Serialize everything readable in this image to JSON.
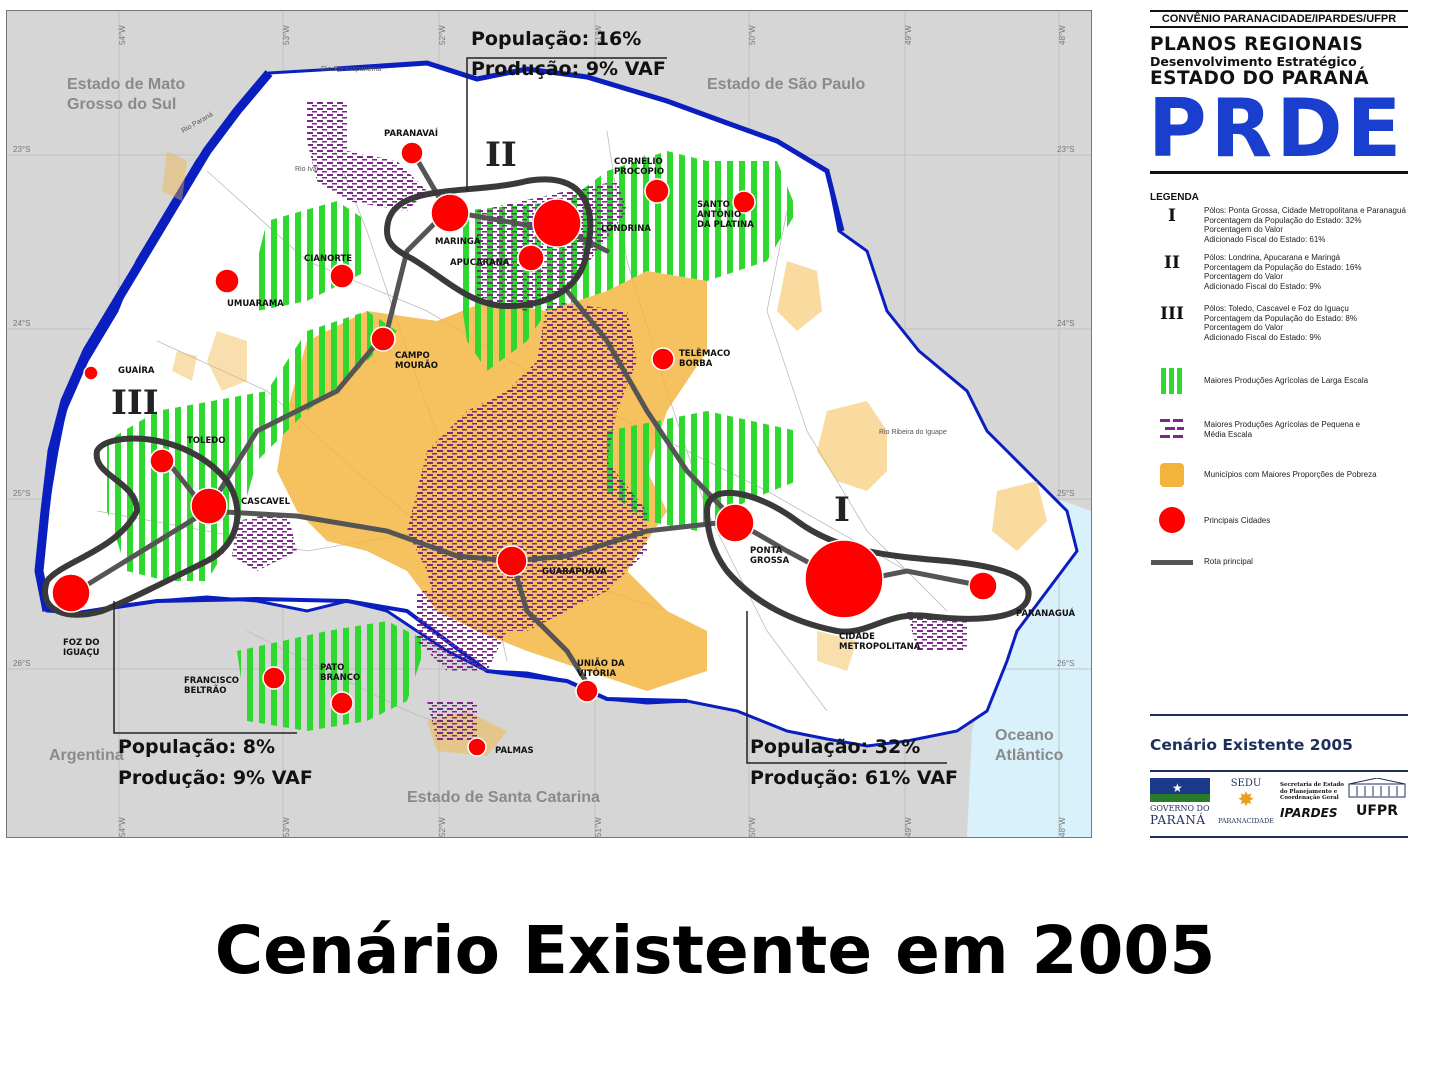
{
  "slide_title": "Cenário Existente em 2005",
  "map": {
    "neighbors": {
      "ms_line1": "Estado de Mato",
      "ms_line2": "Grosso do Sul",
      "sp": "Estado de São Paulo",
      "sc": "Estado de Santa Catarina",
      "argentina": "Argentina",
      "ocean_line1": "Oceano",
      "ocean_line2": "Atlântico"
    },
    "longitudes": [
      "54°W",
      "53°W",
      "52°W",
      "51°W",
      "50°W",
      "49°W",
      "48°W"
    ],
    "latitudes": [
      "23°S",
      "24°S",
      "25°S",
      "26°S"
    ],
    "rivers": {
      "paranapanema": "Rio Paranapanema",
      "parana": "Rio Paraná",
      "ivai": "Rio Ivaí",
      "ribeira": "Rio Ribeira do Iguape"
    },
    "cities": [
      {
        "name": "PARANAVAÍ"
      },
      {
        "name": "MARINGÁ"
      },
      {
        "name": "LONDRINA"
      },
      {
        "name": "APUCARANA"
      },
      {
        "name": "CORNÉLIO"
      },
      {
        "name": "PROCÓPIO"
      },
      {
        "name": "SANTO"
      },
      {
        "name": "ANTÔNIO"
      },
      {
        "name": "DA PLATINA"
      },
      {
        "name": "CIANORTE"
      },
      {
        "name": "UMUARAMA"
      },
      {
        "name": "CAMPO"
      },
      {
        "name": "MOURÃO"
      },
      {
        "name": "TELÊMACO"
      },
      {
        "name": "BORBA"
      },
      {
        "name": "GUAÍRA"
      },
      {
        "name": "TOLEDO"
      },
      {
        "name": "CASCAVEL"
      },
      {
        "name": "FOZ DO"
      },
      {
        "name": "IGUAÇU"
      },
      {
        "name": "PONTA"
      },
      {
        "name": "GROSSA"
      },
      {
        "name": "GUARAPUAVA"
      },
      {
        "name": "CIDADE"
      },
      {
        "name": "METROPOLITANA"
      },
      {
        "name": "PARANAGUÁ"
      },
      {
        "name": "FRANCISCO"
      },
      {
        "name": "BELTRÃO"
      },
      {
        "name": "PATO"
      },
      {
        "name": "BRANCO"
      },
      {
        "name": "UNIÃO DA"
      },
      {
        "name": "VITÓRIA"
      },
      {
        "name": "PALMAS"
      }
    ],
    "regions": [
      {
        "numeral": "I",
        "population": "População: 32%",
        "production": "Produção:  61% VAF"
      },
      {
        "numeral": "II",
        "population": "População: 16%",
        "production": "Produção:    9% VAF"
      },
      {
        "numeral": "III",
        "population": "População: 8%",
        "production": "Produção:  9% VAF"
      }
    ],
    "colors": {
      "large_agri": "#2ed82e",
      "small_agri": "#7a2a86",
      "poverty": "#f4b43c",
      "city": "#ff0000",
      "route": "#555555",
      "water": "#0b1fc0",
      "ocean": "#d8f1fb"
    }
  },
  "header": {
    "convenio": "CONVÊNIO PARANACIDADE/IPARDES/UFPR",
    "line1": "PLANOS REGIONAIS",
    "line2": "Desenvolvimento Estratégico",
    "line3": "ESTADO DO PARANÁ",
    "acronym": "PRDE"
  },
  "legend": {
    "title": "LEGENDA",
    "poles": [
      {
        "numeral": "I",
        "lines": [
          "Pólos: Ponta Grossa, Cidade Metropolitana e Paranaguá",
          "Porcentagem da População do Estado: 32%",
          "Porcentagem do Valor",
          "Adicionado Fiscal do Estado: 61%"
        ]
      },
      {
        "numeral": "II",
        "lines": [
          "Pólos: Londrina, Apucarana e Maringá",
          "Porcentagem da População do Estado: 16%",
          "Porcentagem do Valor",
          "Adicionado Fiscal do Estado: 9%"
        ]
      },
      {
        "numeral": "III",
        "lines": [
          "Pólos: Toledo, Cascavel e Foz do Iguaçu",
          "Porcentagem da População do Estado: 8%",
          "Porcentagem do Valor",
          "Adicionado Fiscal do Estado: 9%"
        ]
      }
    ],
    "items": [
      {
        "icon": "green-stripes-icon",
        "lines": [
          "Maiores Produções Agrícolas de Larga Escala"
        ]
      },
      {
        "icon": "purple-dashes-icon",
        "lines": [
          "Maiores Produções Agrícolas de Pequena e",
          "Média Escala"
        ]
      },
      {
        "icon": "orange-area-icon",
        "lines": [
          "Municípios com Maiores Proporções de Pobreza"
        ]
      },
      {
        "icon": "red-circle-icon",
        "lines": [
          "Principais Cidades"
        ]
      },
      {
        "icon": "gray-line-icon",
        "lines": [
          "Rota principal"
        ]
      }
    ],
    "scenario": "Cenário Existente 2005"
  },
  "logos": {
    "gov_line1": "GOVERNO DO",
    "gov_line2": "PARANÁ",
    "sedu": "SEDU",
    "paranacidade": "PARANACIDADE",
    "sec_line1": "Secretaria de Estado",
    "sec_line2": "do Planejamento e",
    "sec_line3": "Coordenação Geral",
    "ipardes": "IPARDES",
    "ufpr": "UFPR"
  }
}
